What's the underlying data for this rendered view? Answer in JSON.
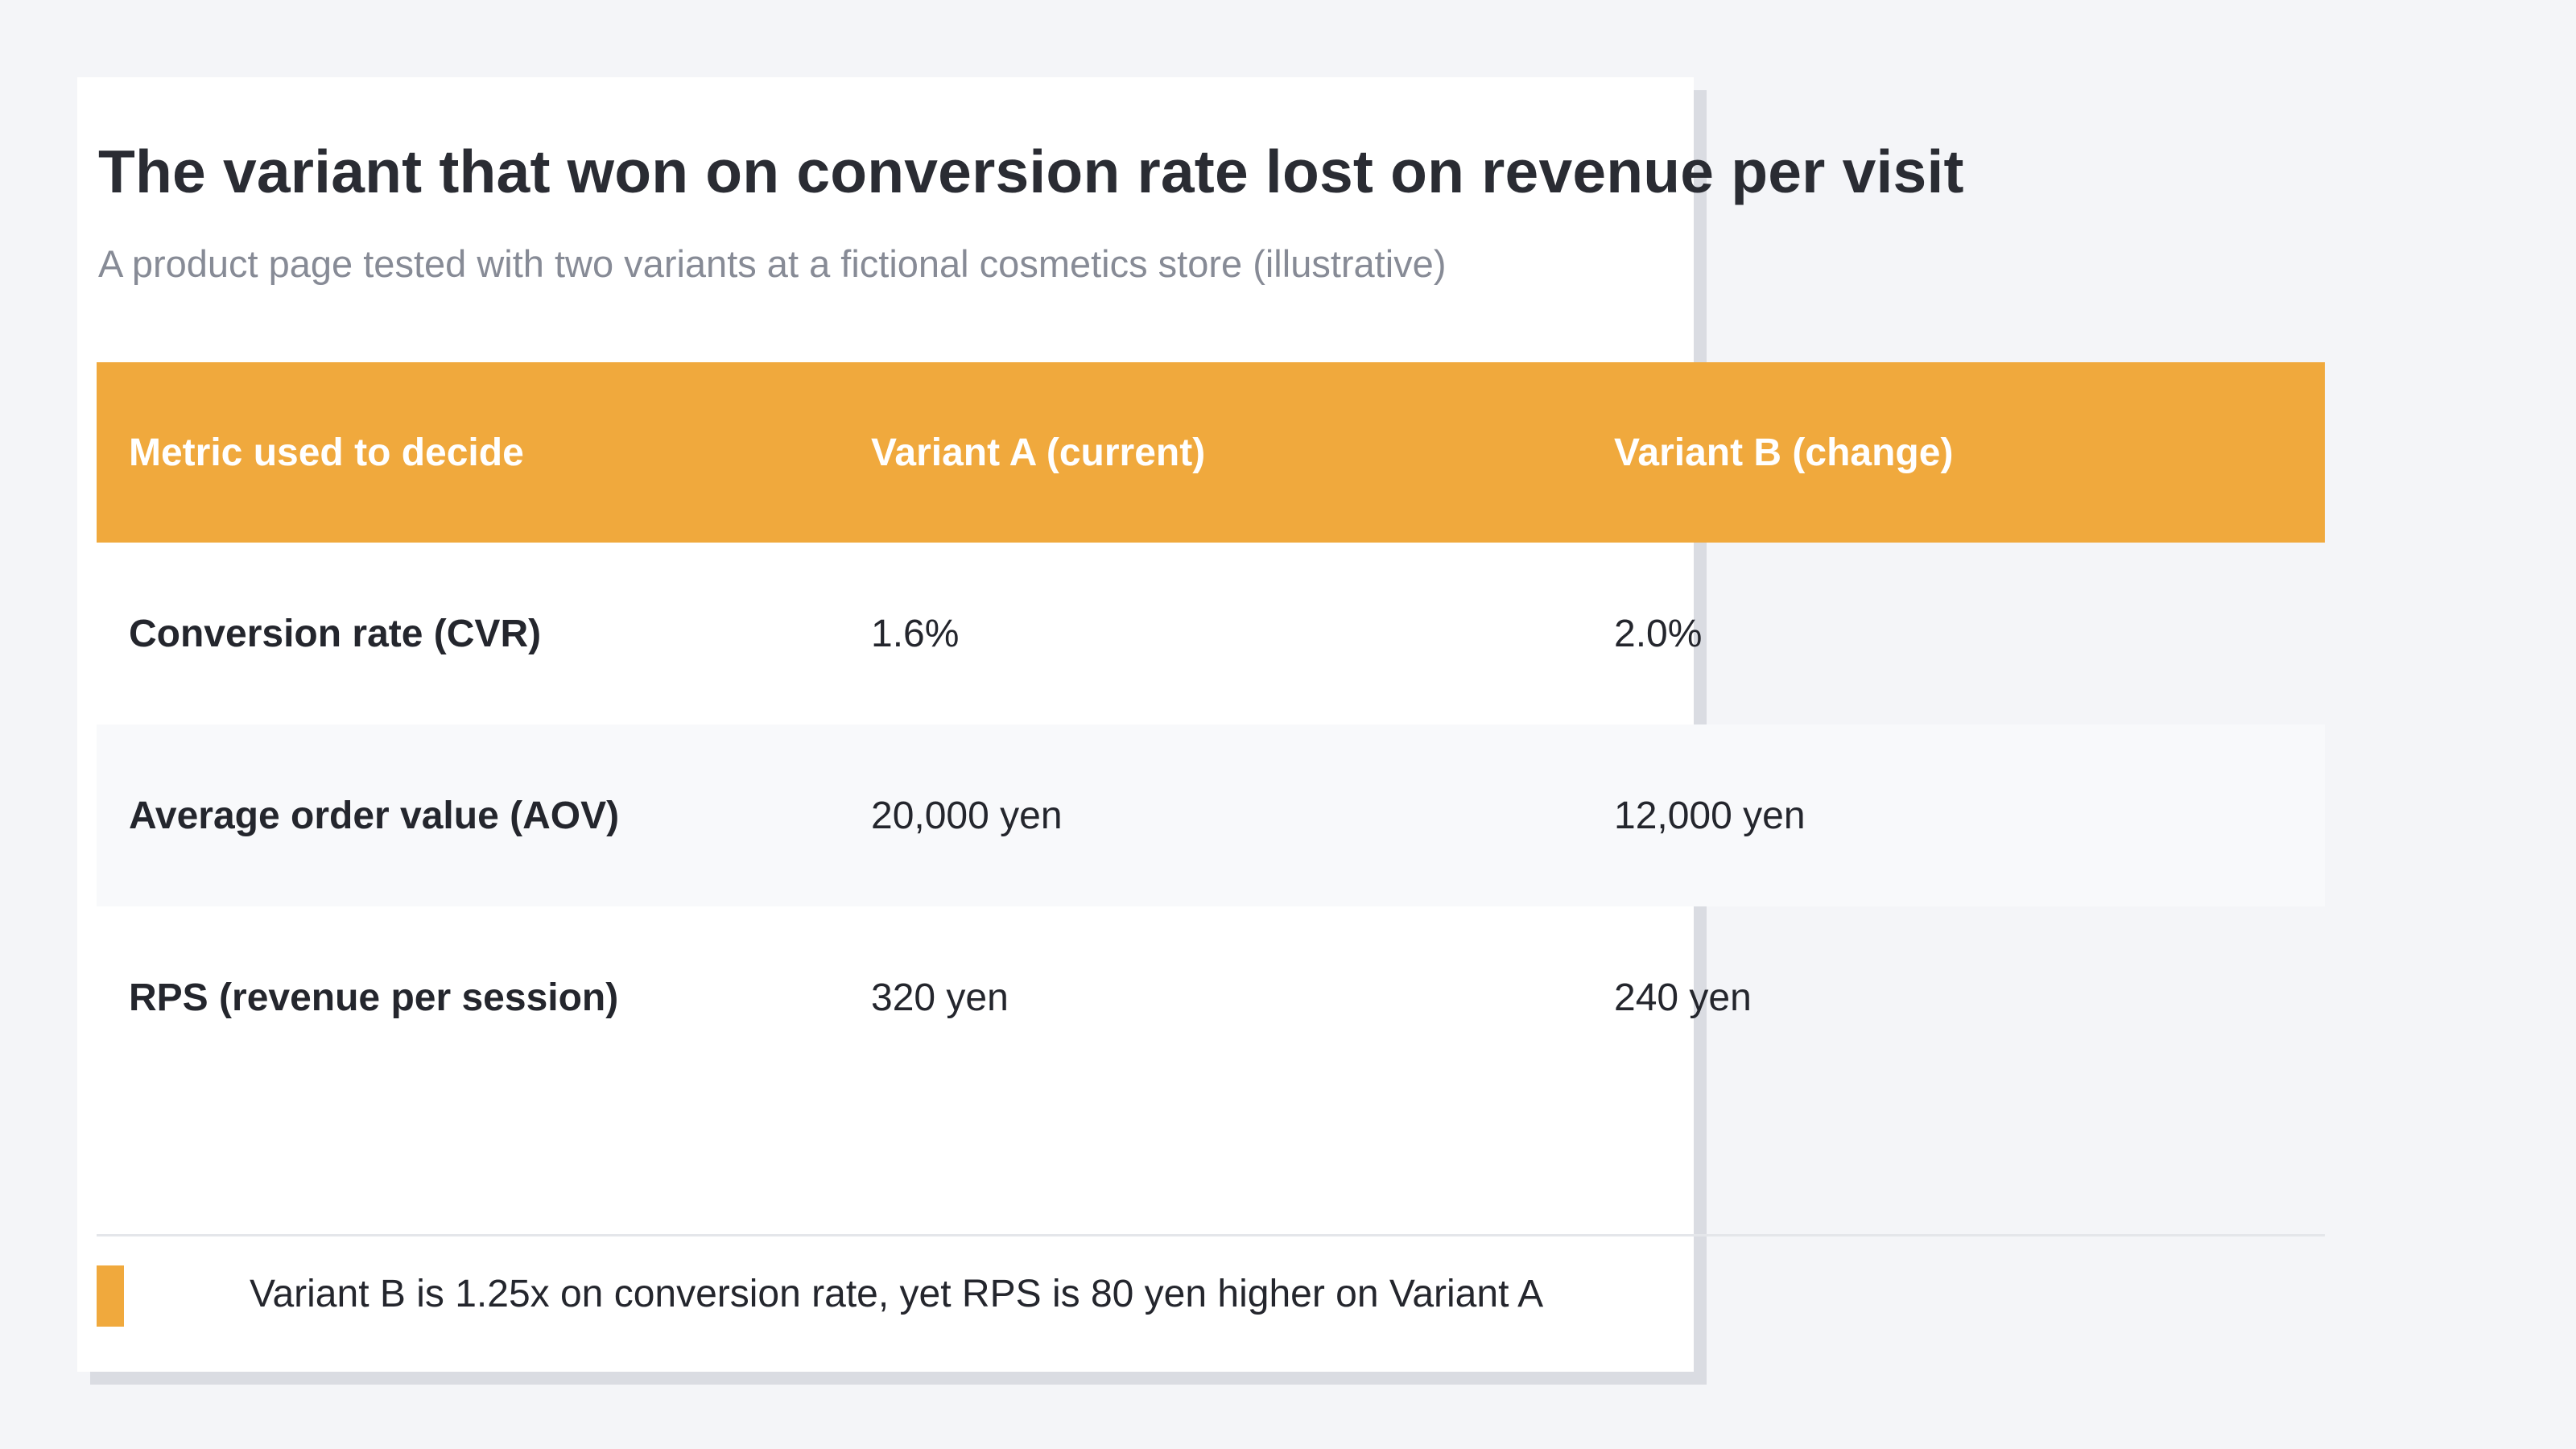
{
  "title": "The variant that won on conversion rate lost on revenue per visit",
  "subtitle": "A product page tested with two variants at a fictional cosmetics store (illustrative)",
  "colors": {
    "accent": "#f0a93d",
    "background": "#f4f5f8",
    "card": "#ffffff",
    "text": "#24262d",
    "muted": "#878b96",
    "alt_row": "#f8f9fb"
  },
  "table": {
    "headers": [
      "Metric used to decide",
      "Variant A (current)",
      "Variant B (change)"
    ],
    "rows": [
      {
        "metric": "Conversion rate (CVR)",
        "variant_a": "1.6%",
        "variant_b": "2.0%"
      },
      {
        "metric": "Average order value (AOV)",
        "variant_a": "20,000 yen",
        "variant_b": "12,000 yen"
      },
      {
        "metric": "RPS (revenue per session)",
        "variant_a": "320 yen",
        "variant_b": "240 yen"
      }
    ]
  },
  "footnote": "Variant B is 1.25x on conversion rate, yet RPS is 80 yen higher on Variant A"
}
